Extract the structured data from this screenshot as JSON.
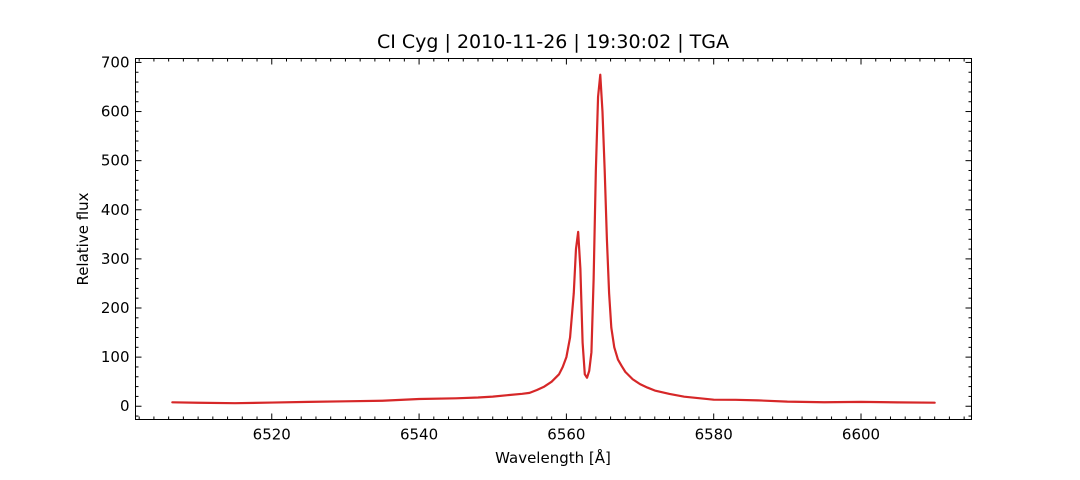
{
  "chart_data": {
    "type": "line",
    "title": "CI Cyg | 2010-11-26 | 19:30:02 | TGA",
    "xlabel": "Wavelength [Å]",
    "ylabel": "Relative flux",
    "xlim": [
      6501.5,
      6615.0
    ],
    "ylim": [
      -27,
      708
    ],
    "x_ticks": [
      6520,
      6540,
      6560,
      6580,
      6600
    ],
    "y_ticks": [
      0,
      100,
      200,
      300,
      400,
      500,
      600,
      700
    ],
    "x_minor_step": 2,
    "y_minor_step": 20,
    "grid": false,
    "series": [
      {
        "color": "#d62728",
        "x": [
          6506.5,
          6510,
          6515,
          6520,
          6525,
          6530,
          6535,
          6540,
          6545,
          6548,
          6550,
          6552,
          6554,
          6555,
          6556,
          6557,
          6558,
          6559,
          6559.5,
          6560,
          6560.5,
          6561,
          6561.3,
          6561.6,
          6561.9,
          6562.2,
          6562.5,
          6562.8,
          6563.1,
          6563.4,
          6563.7,
          6564.0,
          6564.3,
          6564.6,
          6564.9,
          6565.2,
          6565.5,
          6565.8,
          6566.1,
          6566.5,
          6567.0,
          6567.5,
          6568,
          6569,
          6570,
          6571,
          6572,
          6574,
          6576,
          6578,
          6580,
          6583,
          6586,
          6590,
          6595,
          6600,
          6605,
          6610
        ],
        "values": [
          8,
          7,
          7,
          8,
          9,
          10,
          12,
          14,
          16,
          18,
          20,
          22,
          25,
          28,
          33,
          40,
          50,
          65,
          80,
          100,
          140,
          230,
          320,
          355,
          280,
          130,
          65,
          58,
          72,
          110,
          260,
          480,
          630,
          675,
          600,
          480,
          340,
          230,
          160,
          120,
          95,
          82,
          70,
          55,
          45,
          38,
          32,
          25,
          20,
          16,
          14,
          13,
          12,
          10,
          9,
          8,
          7,
          8
        ]
      }
    ]
  }
}
